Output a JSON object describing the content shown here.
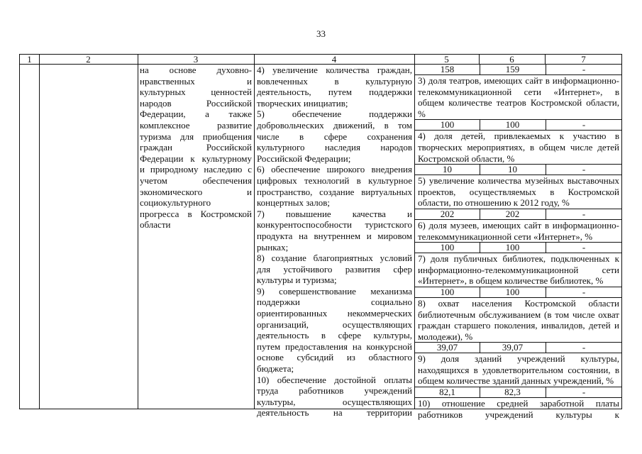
{
  "page_number": "33",
  "header": [
    "1",
    "2",
    "3",
    "4",
    "5",
    "6",
    "7"
  ],
  "col3_paragraphs": [
    {
      "lines": [
        "на основе духовно-",
        "нравственных и",
        "культурных ценностей",
        "народов Российской",
        "Федерации, а также",
        "комплексное развитие",
        "туризма для приобщения",
        "граждан Российской",
        "Федерации к культурному",
        "и природному наследию с",
        "учетом обеспечения",
        "экономического и",
        "социокультурного",
        "прогресса в Костромской",
        "области"
      ],
      "continues": false
    }
  ],
  "col4_paragraphs": [
    {
      "lines": [
        "4) увеличение количества граждан,",
        "вовлеченных в культурную",
        "деятельность, путем поддержки",
        "творческих инициатив;"
      ],
      "continues": false
    },
    {
      "lines": [
        "5) обеспечение поддержки",
        "добровольческих движений, в том",
        "числе в сфере сохранения",
        "культурного наследия народов",
        "Российской Федерации;"
      ],
      "continues": false
    },
    {
      "lines": [
        "6) обеспечение широкого внедрения",
        "цифровых технологий в культурное",
        "пространство, создание виртуальных",
        "концертных залов;"
      ],
      "continues": false
    },
    {
      "lines": [
        "7) повышение качества и",
        "конкурентоспособности туристского",
        "продукта на внутреннем и мировом",
        "рынках;"
      ],
      "continues": false
    },
    {
      "lines": [
        "8) создание благоприятных условий",
        "для устойчивого развития сфер",
        "культуры и туризма;"
      ],
      "continues": false
    },
    {
      "lines": [
        "9) совершенствование механизма",
        "поддержки социально",
        "ориентированных некоммерческих",
        "организаций, осуществляющих",
        "деятельность в сфере культуры,",
        "путем предоставления на конкурсной",
        "основе субсидий из областного",
        "бюджета;"
      ],
      "continues": false
    },
    {
      "lines": [
        "10) обеспечение достойной оплаты",
        "труда работников учреждений",
        "культуры, осуществляющих",
        "деятельность на территории"
      ],
      "continues": true
    }
  ],
  "indicators": [
    {
      "lines": [],
      "values": [
        "158",
        "159",
        "-"
      ],
      "continues": false
    },
    {
      "lines": [
        "3) доля театров, имеющих сайт в информационно-",
        "телекоммуникационной сети «Интернет», в",
        "общем количестве театров Костромской области,",
        "%"
      ],
      "values": [
        "100",
        "100",
        "-"
      ],
      "continues": false
    },
    {
      "lines": [
        "4) доля детей, привлекаемых к участию в",
        "творческих мероприятиях, в общем числе детей",
        "Костромской области, %"
      ],
      "values": [
        "10",
        "10",
        "-"
      ],
      "continues": false
    },
    {
      "lines": [
        "5) увеличение количества музейных выставочных",
        "проектов, осуществляемых в Костромской",
        "области, по отношению к 2012 году, %"
      ],
      "values": [
        "202",
        "202",
        "-"
      ],
      "continues": false
    },
    {
      "lines": [
        "6) доля музеев, имеющих сайт в информационно-",
        "телекоммуникационной сети «Интернет», %"
      ],
      "values": [
        "100",
        "100",
        "-"
      ],
      "continues": false
    },
    {
      "lines": [
        "7) доля публичных библиотек, подключенных к",
        "информационно-телекоммуникационной сети",
        "«Интернет», в общем количестве библиотек, %"
      ],
      "values": [
        "100",
        "100",
        "-"
      ],
      "continues": false
    },
    {
      "lines": [
        "8) охват населения Костромской области",
        "библиотечным обслуживанием (в том числе охват",
        "граждан старшего поколения, инвалидов, детей и",
        "молодежи), %"
      ],
      "values": [
        "39,07",
        "39,07",
        "-"
      ],
      "continues": false
    },
    {
      "lines": [
        "9) доля зданий учреждений культуры,",
        "находящихся в удовлетворительном состоянии, в",
        "общем количестве зданий данных учреждений, %"
      ],
      "values": [
        "82,1",
        "82,3",
        "-"
      ],
      "continues": false
    },
    {
      "lines": [
        "10) отношение средней заработной платы",
        "работников учреждений культуры к"
      ],
      "values": null,
      "continues": true
    }
  ]
}
